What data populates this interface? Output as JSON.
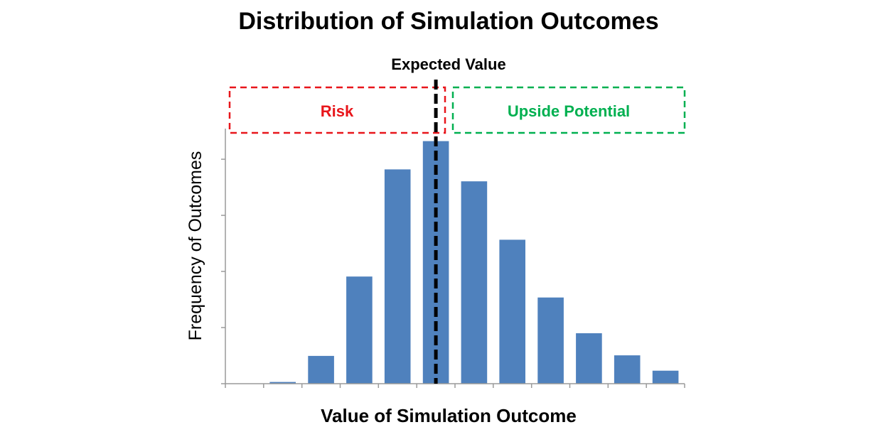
{
  "chart_data": {
    "type": "bar",
    "title": "Distribution of Simulation Outcomes",
    "xlabel": "Value of Simulation Outcome",
    "ylabel": "Frequency of Outcomes",
    "categories": [
      "",
      "",
      "",
      "",
      "",
      "",
      "",
      "",
      "",
      "",
      "",
      ""
    ],
    "values": [
      0,
      0.3,
      4.9,
      18.9,
      37.8,
      42.8,
      35.7,
      25.4,
      15.2,
      8.9,
      5.0,
      2.3
    ],
    "ylim": [
      0,
      45
    ],
    "grid": false,
    "bar_color": "#4f81bd",
    "expected_value_position": 5.5,
    "annotations": {
      "expected_value": "Expected Value",
      "risk": "Risk",
      "upside": "Upside Potential"
    },
    "colors": {
      "risk": "#e8161b",
      "upside": "#00b050",
      "expected_line": "#000000"
    }
  }
}
